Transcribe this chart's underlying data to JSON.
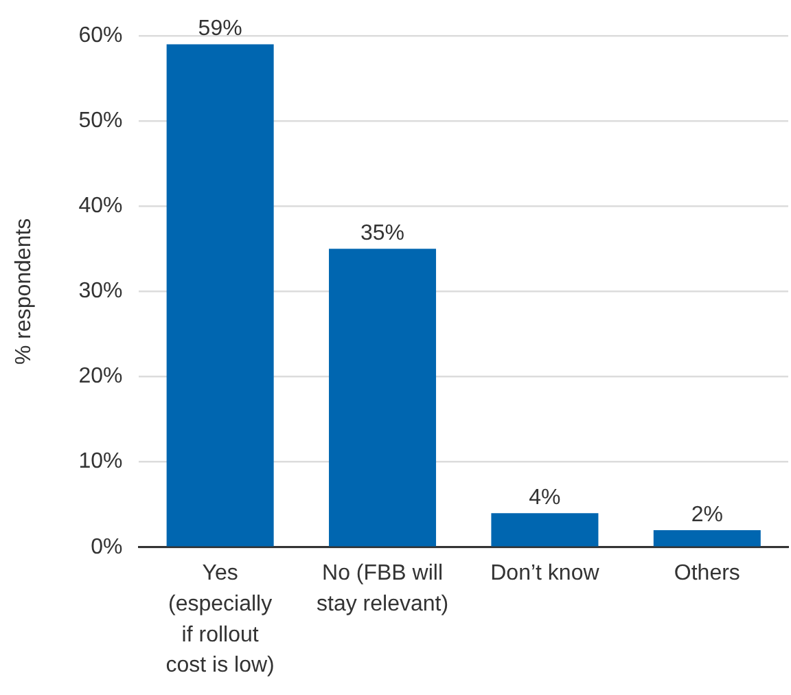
{
  "chart_data": {
    "type": "bar",
    "categories": [
      "Yes\n(especially\nif rollout\ncost is low)",
      "No (FBB will\nstay relevant)",
      "Don’t know",
      "Others"
    ],
    "values": [
      59,
      35,
      4,
      2
    ],
    "color": "#0066b0",
    "value_labels": [
      "59%",
      "35%",
      "4%",
      "2%"
    ],
    "ylabel": "% respondents",
    "ylim": [
      0,
      60
    ],
    "yticks": [
      {
        "value": 0,
        "label": "0%"
      },
      {
        "value": 10,
        "label": "10%"
      },
      {
        "value": 20,
        "label": "20%"
      },
      {
        "value": 30,
        "label": "30%"
      },
      {
        "value": 40,
        "label": "40%"
      },
      {
        "value": 50,
        "label": "50%"
      },
      {
        "value": 60,
        "label": "60%"
      }
    ],
    "grid": "y"
  }
}
